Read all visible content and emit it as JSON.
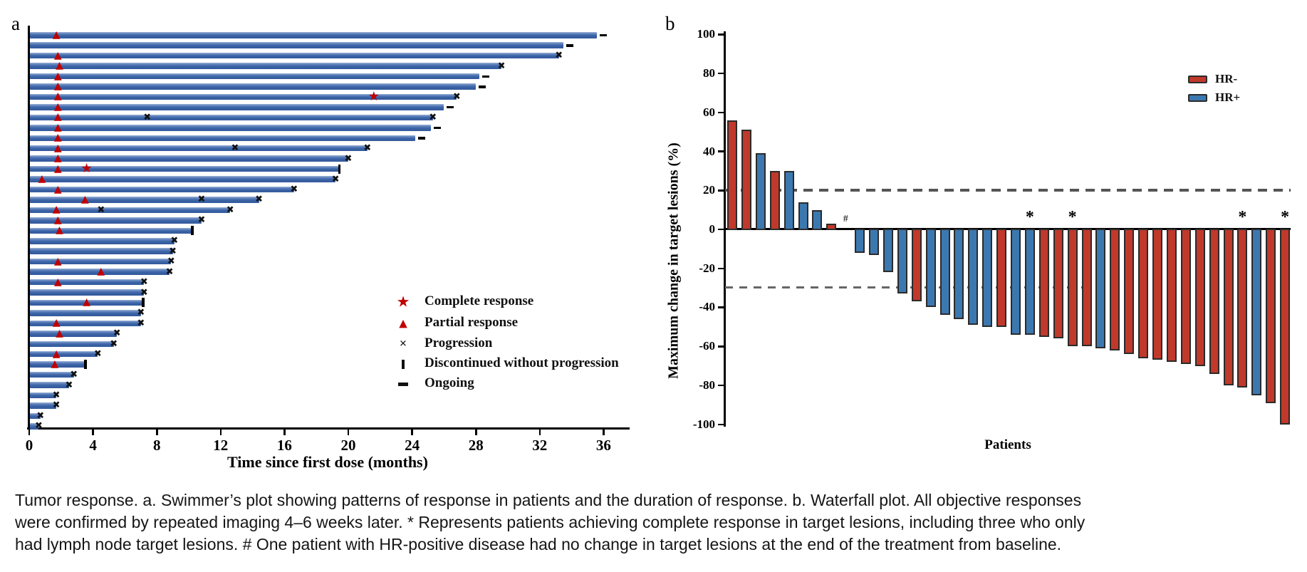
{
  "panel_a": {
    "label": "a",
    "xlabel": "Time since first dose (months)",
    "legend_title": ""
  },
  "panel_b": {
    "label": "b",
    "ylabel": "Maximum change in target lesions (%)",
    "xlabel": "Patients"
  },
  "caption": {
    "text": "Tumor response. a. Swimmer’s plot showing patterns of response in patients and the duration of response. b. Waterfall plot. All objective responses were confirmed by repeated imaging 4–6 weeks later. * Represents patients achieving complete response in target lesions, including three who only had lymph node target lesions. # One patient with HR-positive disease had no change in target lesions at the end of the treatment from baseline."
  },
  "colors": {
    "swimmer_bar_blue": "#3a63a7",
    "marker_red": "#c00000",
    "marker_black": "#111111",
    "waterfall_red": "#c0392b",
    "waterfall_blue": "#3c78b0",
    "dashed_line": "#5f5f5f"
  },
  "chart_data": [
    {
      "type": "bar",
      "name": "swimmer-plot",
      "orientation": "horizontal",
      "xlabel": "Time since first dose (months)",
      "xticks": [
        0,
        4,
        8,
        12,
        16,
        20,
        24,
        28,
        32,
        36
      ],
      "xlim": [
        0,
        37.5
      ],
      "legend": [
        {
          "label": "Complete response",
          "marker": "star"
        },
        {
          "label": "Partial response",
          "marker": "triangle"
        },
        {
          "label": "Progression",
          "marker": "x"
        },
        {
          "label": "Discontinued without progression",
          "marker": "vbar"
        },
        {
          "label": "Ongoing",
          "marker": "dash"
        }
      ],
      "patients": [
        {
          "duration": 35.6,
          "end": "ongoing",
          "pr": 1.7
        },
        {
          "duration": 33.5,
          "end": "ongoing"
        },
        {
          "duration": 33.2,
          "end": "progression",
          "pr": 1.8
        },
        {
          "duration": 29.6,
          "end": "progression",
          "pr": 1.9
        },
        {
          "duration": 28.2,
          "end": "ongoing",
          "pr": 1.8
        },
        {
          "duration": 28.0,
          "end": "ongoing",
          "pr": 1.8
        },
        {
          "duration": 26.8,
          "end": "progression",
          "pr": 1.8,
          "cr": 21.6
        },
        {
          "duration": 26.0,
          "end": "ongoing",
          "pr": 1.8
        },
        {
          "duration": 25.3,
          "end": "progression",
          "pr": 1.8,
          "xmarks": [
            7.4
          ]
        },
        {
          "duration": 25.2,
          "end": "ongoing",
          "pr": 1.8
        },
        {
          "duration": 24.2,
          "end": "ongoing",
          "pr": 1.8
        },
        {
          "duration": 21.2,
          "end": "progression",
          "pr": 1.8,
          "xmarks": [
            12.9
          ]
        },
        {
          "duration": 20.0,
          "end": "progression",
          "pr": 1.8
        },
        {
          "duration": 19.4,
          "end": "discontinued",
          "pr": 1.8,
          "cr": 3.6
        },
        {
          "duration": 19.2,
          "end": "progression",
          "pr": 0.8
        },
        {
          "duration": 16.6,
          "end": "progression",
          "pr": 1.8
        },
        {
          "duration": 14.4,
          "end": "progression",
          "pr": 3.5,
          "xmarks": [
            10.8
          ]
        },
        {
          "duration": 12.6,
          "end": "progression",
          "pr": 1.7,
          "xmarks": [
            4.5
          ]
        },
        {
          "duration": 10.8,
          "end": "progression",
          "pr": 1.8
        },
        {
          "duration": 10.2,
          "end": "discontinued",
          "pr": 1.9
        },
        {
          "duration": 9.1,
          "end": "progression"
        },
        {
          "duration": 9.0,
          "end": "progression"
        },
        {
          "duration": 8.9,
          "end": "progression",
          "pr": 1.8
        },
        {
          "duration": 8.8,
          "end": "progression",
          "pr": 4.5
        },
        {
          "duration": 7.2,
          "end": "progression",
          "pr": 1.8
        },
        {
          "duration": 7.2,
          "end": "progression"
        },
        {
          "duration": 7.1,
          "end": "discontinued",
          "pr": 3.6
        },
        {
          "duration": 7.0,
          "end": "progression"
        },
        {
          "duration": 7.0,
          "end": "progression",
          "pr": 1.7
        },
        {
          "duration": 5.5,
          "end": "progression",
          "pr": 1.9
        },
        {
          "duration": 5.3,
          "end": "progression"
        },
        {
          "duration": 4.3,
          "end": "progression",
          "pr": 1.7
        },
        {
          "duration": 3.5,
          "end": "discontinued",
          "pr": 1.6
        },
        {
          "duration": 2.8,
          "end": "progression"
        },
        {
          "duration": 2.5,
          "end": "progression"
        },
        {
          "duration": 1.7,
          "end": "progression"
        },
        {
          "duration": 1.7,
          "end": "progression"
        },
        {
          "duration": 0.7,
          "end": "progression"
        },
        {
          "duration": 0.6,
          "end": "progression"
        }
      ]
    },
    {
      "type": "bar",
      "name": "waterfall-plot",
      "ylabel": "Maximum change in target lesions (%)",
      "xlabel": "Patients",
      "ylim": [
        -100,
        100
      ],
      "yticks": [
        100,
        80,
        60,
        40,
        20,
        0,
        -20,
        -40,
        -60,
        -80,
        -100
      ],
      "reference_lines": [
        20,
        -30
      ],
      "legend": [
        {
          "label": "HR-",
          "color": "#c0392b"
        },
        {
          "label": "HR+",
          "color": "#3c78b0"
        }
      ],
      "patients": [
        {
          "value": 56,
          "group": "HR-"
        },
        {
          "value": 51,
          "group": "HR-"
        },
        {
          "value": 39,
          "group": "HR+"
        },
        {
          "value": 30,
          "group": "HR-"
        },
        {
          "value": 30,
          "group": "HR+"
        },
        {
          "value": 14,
          "group": "HR+"
        },
        {
          "value": 10,
          "group": "HR+"
        },
        {
          "value": 3,
          "group": "HR-"
        },
        {
          "value": 0,
          "group": "HR+",
          "mark": "#"
        },
        {
          "value": -12,
          "group": "HR+"
        },
        {
          "value": -13,
          "group": "HR+"
        },
        {
          "value": -22,
          "group": "HR+"
        },
        {
          "value": -33,
          "group": "HR+"
        },
        {
          "value": -37,
          "group": "HR-"
        },
        {
          "value": -40,
          "group": "HR+"
        },
        {
          "value": -44,
          "group": "HR+"
        },
        {
          "value": -46,
          "group": "HR+"
        },
        {
          "value": -49,
          "group": "HR+"
        },
        {
          "value": -50,
          "group": "HR+"
        },
        {
          "value": -50,
          "group": "HR-"
        },
        {
          "value": -54,
          "group": "HR+"
        },
        {
          "value": -54,
          "group": "HR+",
          "mark": "*"
        },
        {
          "value": -55,
          "group": "HR-"
        },
        {
          "value": -56,
          "group": "HR-"
        },
        {
          "value": -60,
          "group": "HR-",
          "mark": "*"
        },
        {
          "value": -60,
          "group": "HR-"
        },
        {
          "value": -61,
          "group": "HR+"
        },
        {
          "value": -62,
          "group": "HR-"
        },
        {
          "value": -64,
          "group": "HR-"
        },
        {
          "value": -66,
          "group": "HR-"
        },
        {
          "value": -67,
          "group": "HR-"
        },
        {
          "value": -68,
          "group": "HR-"
        },
        {
          "value": -69,
          "group": "HR-"
        },
        {
          "value": -70,
          "group": "HR-"
        },
        {
          "value": -74,
          "group": "HR-"
        },
        {
          "value": -80,
          "group": "HR-"
        },
        {
          "value": -81,
          "group": "HR-",
          "mark": "*"
        },
        {
          "value": -85,
          "group": "HR+"
        },
        {
          "value": -89,
          "group": "HR-"
        },
        {
          "value": -100,
          "group": "HR-",
          "mark": "*"
        }
      ]
    }
  ]
}
